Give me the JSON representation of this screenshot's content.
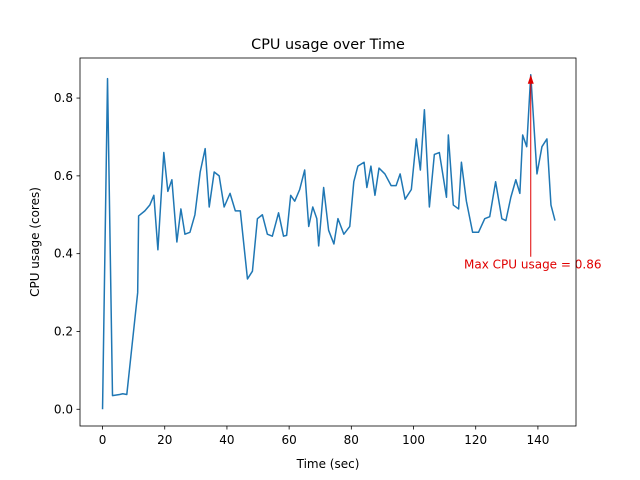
{
  "chart_data": {
    "type": "line",
    "title": "CPU usage over Time",
    "x_label": "Time (sec)",
    "y_label": "CPU usage (cores)",
    "annotation": "Max CPU usage = 0.86",
    "annotation_color": "#e00000",
    "xlim": [
      -7.25,
      152.25
    ],
    "ylim": [
      -0.043,
      0.903
    ],
    "xticks": [
      0,
      20,
      40,
      60,
      80,
      100,
      120,
      140
    ],
    "yticks": [
      {
        "value": 0,
        "label": "0.0"
      },
      0.2,
      0.4,
      0.6,
      0.8
    ],
    "series": [
      {
        "color": "#1f77b4",
        "x": [
          0,
          1.6,
          3.2,
          5.5,
          6.5,
          7.8,
          11.3,
          11.6,
          13.6,
          15.2,
          16.5,
          17.8,
          19.7,
          21,
          22.3,
          23.9,
          25.2,
          26.5,
          28.1,
          29.7,
          31.4,
          33,
          34.3,
          35.9,
          37.5,
          39.1,
          41,
          42.7,
          44.3,
          46.6,
          48.2,
          49.8,
          51.4,
          53,
          54.6,
          56.6,
          58.2,
          59.2,
          60.5,
          61.8,
          63.4,
          65,
          66.3,
          67.6,
          68.9,
          69.5,
          71.1,
          72.7,
          74.4,
          75.7,
          77.6,
          79.5,
          80.8,
          82.1,
          84.1,
          85,
          86.3,
          87.6,
          88.9,
          90.8,
          92.8,
          94.4,
          95.7,
          97.3,
          99.3,
          100.9,
          102.2,
          103.5,
          105.1,
          106.7,
          108.3,
          110.6,
          111.2,
          112.8,
          114.5,
          115.4,
          117,
          119,
          120.9,
          122.9,
          124.5,
          126.4,
          128.4,
          129.7,
          131.3,
          132.9,
          134.2,
          135.1,
          136.4,
          137.7,
          139.7,
          141.3,
          142.9,
          144.2,
          145.5
        ],
        "values": [
          0,
          0.85,
          0.035,
          0.038,
          0.04,
          0.038,
          0.3,
          0.497,
          0.51,
          0.525,
          0.55,
          0.41,
          0.66,
          0.56,
          0.59,
          0.43,
          0.515,
          0.45,
          0.455,
          0.5,
          0.61,
          0.67,
          0.52,
          0.61,
          0.6,
          0.52,
          0.555,
          0.51,
          0.51,
          0.335,
          0.355,
          0.49,
          0.5,
          0.45,
          0.445,
          0.505,
          0.445,
          0.447,
          0.55,
          0.535,
          0.565,
          0.615,
          0.47,
          0.52,
          0.49,
          0.42,
          0.57,
          0.46,
          0.425,
          0.49,
          0.45,
          0.47,
          0.585,
          0.625,
          0.635,
          0.57,
          0.625,
          0.55,
          0.62,
          0.605,
          0.575,
          0.575,
          0.605,
          0.54,
          0.565,
          0.695,
          0.615,
          0.77,
          0.52,
          0.655,
          0.66,
          0.545,
          0.705,
          0.525,
          0.515,
          0.635,
          0.535,
          0.455,
          0.455,
          0.49,
          0.495,
          0.585,
          0.49,
          0.485,
          0.545,
          0.59,
          0.555,
          0.705,
          0.675,
          0.86,
          0.605,
          0.675,
          0.695,
          0.525,
          0.485
        ]
      }
    ]
  }
}
